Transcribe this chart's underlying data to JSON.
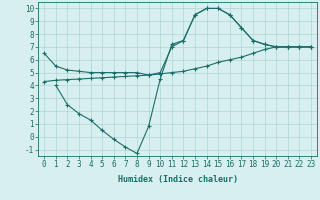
{
  "line1_x": [
    0,
    1,
    2,
    3,
    4,
    5,
    6,
    7,
    8,
    9,
    10,
    11,
    12,
    13,
    14,
    15,
    16,
    17,
    18,
    19,
    20,
    21,
    22,
    23
  ],
  "line1_y": [
    6.5,
    5.5,
    5.2,
    5.1,
    5.0,
    5.0,
    5.0,
    5.0,
    5.0,
    4.8,
    5.0,
    7.0,
    7.5,
    9.5,
    10.0,
    10.0,
    9.5,
    8.5,
    7.5,
    7.2,
    7.0,
    7.0,
    7.0,
    7.0
  ],
  "line2_x": [
    0,
    1,
    2,
    3,
    4,
    5,
    6,
    7,
    8,
    9,
    10,
    11,
    12,
    13,
    14,
    15,
    16,
    17,
    18,
    19,
    20,
    21,
    22,
    23
  ],
  "line2_y": [
    4.3,
    4.4,
    4.45,
    4.5,
    4.55,
    4.6,
    4.65,
    4.7,
    4.75,
    4.8,
    4.9,
    5.0,
    5.1,
    5.3,
    5.5,
    5.8,
    6.0,
    6.2,
    6.5,
    6.8,
    7.0,
    7.0,
    7.0,
    7.0
  ],
  "line3_x": [
    1,
    2,
    3,
    4,
    5,
    6,
    7,
    8,
    9,
    10,
    11,
    12,
    13,
    14,
    15,
    16,
    17,
    18,
    19,
    20,
    21,
    22,
    23
  ],
  "line3_y": [
    4.0,
    2.5,
    1.8,
    1.3,
    0.5,
    -0.2,
    -0.8,
    -1.3,
    0.8,
    4.5,
    7.2,
    7.5,
    9.5,
    10.0,
    10.0,
    9.5,
    8.5,
    7.5,
    7.2,
    7.0,
    7.0,
    7.0,
    7.0
  ],
  "color": "#1a6e6a",
  "bg_color": "#d8efef",
  "grid_color": "#aed4d4",
  "xlabel": "Humidex (Indice chaleur)",
  "xlim": [
    -0.5,
    23.5
  ],
  "ylim": [
    -1.5,
    10.5
  ],
  "yticks": [
    -1,
    0,
    1,
    2,
    3,
    4,
    5,
    6,
    7,
    8,
    9,
    10
  ],
  "xticks": [
    0,
    1,
    2,
    3,
    4,
    5,
    6,
    7,
    8,
    9,
    10,
    11,
    12,
    13,
    14,
    15,
    16,
    17,
    18,
    19,
    20,
    21,
    22,
    23
  ],
  "marker": "+",
  "markersize": 3.5,
  "markeredgewidth": 0.8,
  "linewidth": 0.8,
  "font_size": 5.5,
  "xlabel_fontsize": 6.0
}
